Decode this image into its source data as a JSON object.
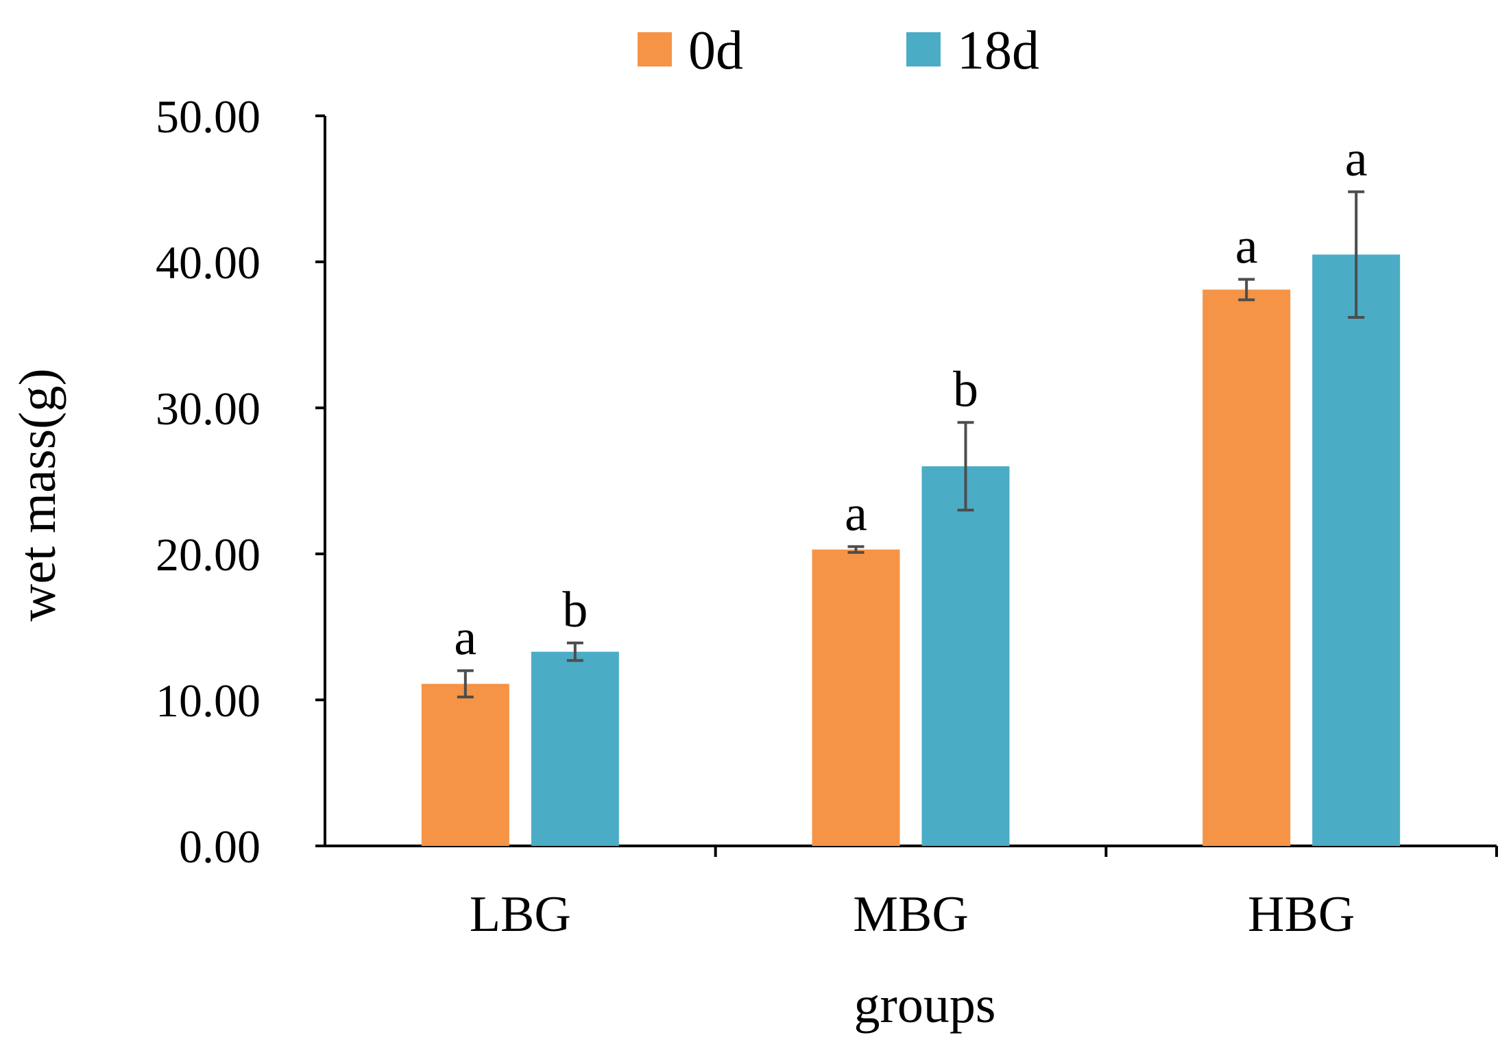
{
  "chart_data": {
    "type": "bar",
    "title": "",
    "xlabel": "groups",
    "ylabel": "wet mass(g)",
    "ylim": [
      0,
      50
    ],
    "yticks": [
      "0.00",
      "10.00",
      "20.00",
      "30.00",
      "40.00",
      "50.00"
    ],
    "ytick_values": [
      0,
      10,
      20,
      30,
      40,
      50
    ],
    "grid": false,
    "legend_position": "top-center",
    "categories": [
      "LBG",
      "MBG",
      "HBG"
    ],
    "series": [
      {
        "name": "0d",
        "color": "#F59446",
        "values": [
          11.1,
          20.3,
          38.1
        ],
        "errors": [
          0.9,
          0.2,
          0.7
        ],
        "significance": [
          "a",
          "a",
          "a"
        ]
      },
      {
        "name": "18d",
        "color": "#4BACC6",
        "values": [
          13.3,
          26.0,
          40.5
        ],
        "errors": [
          0.6,
          3.0,
          4.3
        ],
        "significance": [
          "b",
          "b",
          "a"
        ]
      }
    ],
    "error_bar_color": "#4D4D4D"
  }
}
